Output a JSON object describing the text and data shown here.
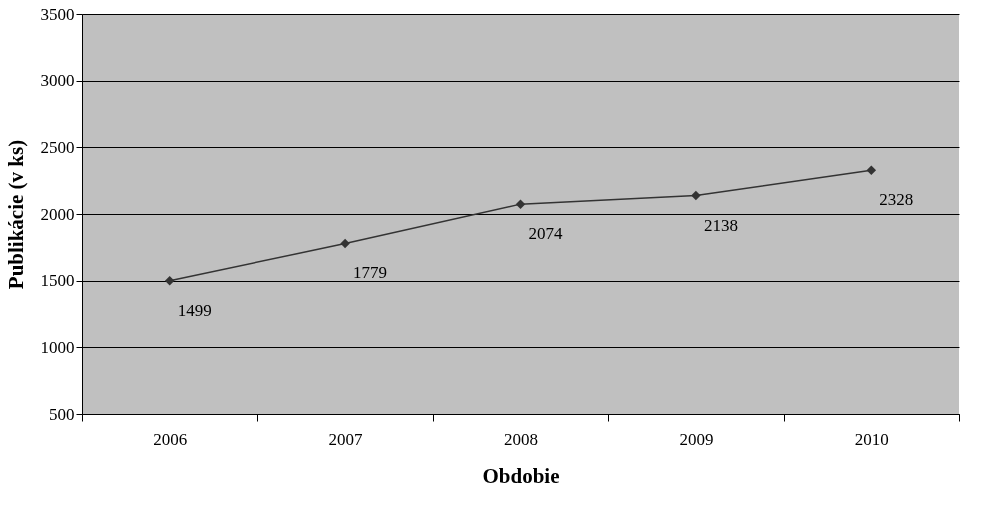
{
  "chart_data": {
    "type": "line",
    "xlabel": "Obdobie",
    "ylabel": "Publikácie (v ks)",
    "categories": [
      "2006",
      "2007",
      "2008",
      "2009",
      "2010"
    ],
    "series": [
      {
        "color": "#333333",
        "values": [
          1499,
          1779,
          2074,
          2138,
          2328
        ]
      }
    ],
    "ylim": [
      500,
      3500
    ],
    "yticks": [
      500,
      1000,
      1500,
      2000,
      2500,
      3000,
      3500
    ],
    "grid": "y",
    "marker": "diamond",
    "line_style": "solid",
    "data_labels": true
  }
}
